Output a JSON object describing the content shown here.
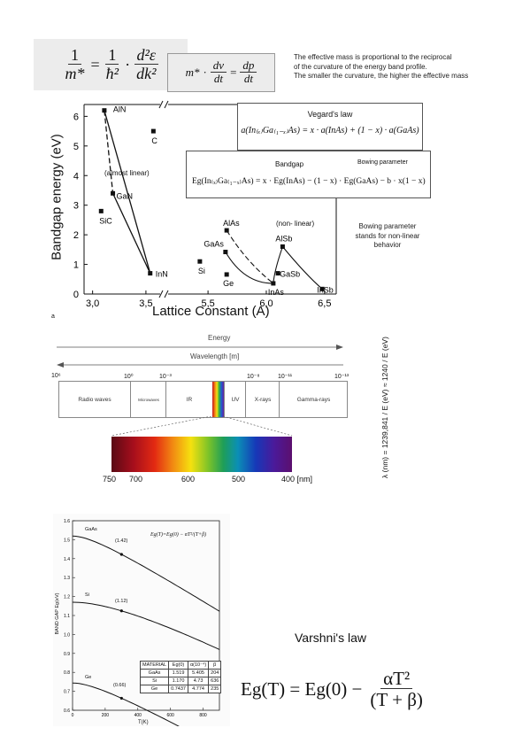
{
  "header_formula": {
    "lhs_num": "1",
    "lhs_den": "m*",
    "eq": "=",
    "rhs_num": "1",
    "rhs_den": "ħ²",
    "dot": "·",
    "d_num": "d²ε",
    "d_den": "dk²",
    "force_m": "m*",
    "force_dot": "·",
    "force_num": "dv",
    "force_den": "dt",
    "force_eq": "=",
    "force_rhs_num": "dp",
    "force_rhs_den": "dt",
    "note_lines": [
      "The effective mass is proportional to the reciprocal",
      "of the curvature of the energy band profile.",
      "The smaller the curvature, the higher the effective mass"
    ]
  },
  "vegard": {
    "title": "Vegard's law",
    "formula": "a(In₍ₓ₎Ga₍₁₋ₓ₎As) = x · a(InAs) + (1 − x) · a(GaAs)",
    "bandgap_title": "Bandgap",
    "bowing_label": "Bowing parameter",
    "bandgap_formula": "Eg(In₍ₓ₎Ga₍₁₋ₓ₎As) = x · Eg(InAs) − (1 − x) · Eg(GaAs) − b · x(1 − x)",
    "bowing_note": [
      "Bowing parameter",
      "stands for non-linear",
      "behavior"
    ]
  },
  "chart_data": {
    "type": "scatter",
    "ylabel": "Bandgap energy (eV)",
    "xlabel": "Lattice Constant (A)",
    "x_ticks": [
      "3,0",
      "3,5",
      "5,5",
      "6,0",
      "6,5"
    ],
    "y_ticks": [
      "0",
      "1",
      "2",
      "3",
      "4",
      "5",
      "6"
    ],
    "ylim": [
      0,
      6.4
    ],
    "points": [
      {
        "label": "AlN",
        "x": 3.11,
        "y": 6.2
      },
      {
        "label": "C",
        "x": 3.57,
        "y": 5.5
      },
      {
        "label": "GaN",
        "x": 3.19,
        "y": 3.4
      },
      {
        "label": "SiC",
        "x": 3.08,
        "y": 2.8
      },
      {
        "label": "InN",
        "x": 3.54,
        "y": 0.7
      },
      {
        "label": "Si",
        "x": 5.43,
        "y": 1.1
      },
      {
        "label": "Ge",
        "x": 5.66,
        "y": 0.66
      },
      {
        "label": "AlAs",
        "x": 5.66,
        "y": 2.15
      },
      {
        "label": "GaAs",
        "x": 5.65,
        "y": 1.42
      },
      {
        "label": "InAs",
        "x": 6.06,
        "y": 0.36
      },
      {
        "label": "AlSb",
        "x": 6.14,
        "y": 1.6
      },
      {
        "label": "GaSb",
        "x": 6.1,
        "y": 0.7
      },
      {
        "label": "InSb",
        "x": 6.48,
        "y": 0.17
      }
    ],
    "annotations": [
      "(almost linear)",
      "(non- linear)"
    ],
    "footnote": "a"
  },
  "spectrum": {
    "energy_label": "Energy",
    "wavelength_label": "Wavelength [m]",
    "scale_labels": [
      "10⁶",
      "10⁰",
      "10⁻³",
      "10⁻⁸",
      "10⁻¹¹",
      "10⁻¹³"
    ],
    "bands": [
      "Radio waves",
      "Microwaves",
      "IR",
      "UV",
      "X-rays",
      "Gamma-rays"
    ],
    "nm_labels": [
      "750",
      "700",
      "600",
      "500",
      "400 [nm]"
    ],
    "side_formula": "λ (nm) = 1239,841 / E (eV) ≈ 1240 / E (eV)"
  },
  "varshni_chart": {
    "ylabel": "BAND GAP Eg(eV)",
    "xlabel": "T(K)",
    "formula": "Eg(T)=Eg(0) − αT²/(T+β)",
    "y_ticks": [
      "1.6",
      "1.5",
      "1.4",
      "1.3",
      "1.2",
      "1.1",
      "1.0",
      "0.9",
      "0.8",
      "0.7",
      "0.6"
    ],
    "x_ticks": [
      "0",
      "200",
      "400",
      "600",
      "800"
    ],
    "curves": [
      {
        "name": "GaAs",
        "annot": "(1.42)"
      },
      {
        "name": "Si",
        "annot": "(1.12)"
      },
      {
        "name": "Ge",
        "annot": "(0.66)"
      }
    ],
    "table_headers": [
      "MATERIAL",
      "Eg(0)",
      "α(10⁻⁴)",
      "β"
    ],
    "table_rows": [
      [
        "GaAs",
        "1.519",
        "5.405",
        "204"
      ],
      [
        "Si",
        "1.170",
        "4.73",
        "636"
      ],
      [
        "Ge",
        "0.7437",
        "4.774",
        "235"
      ]
    ]
  },
  "varshni": {
    "title": "Varshni's law",
    "lhs": "Eg(T) = Eg(0) −",
    "num": "αT²",
    "den": "(T + β)"
  }
}
